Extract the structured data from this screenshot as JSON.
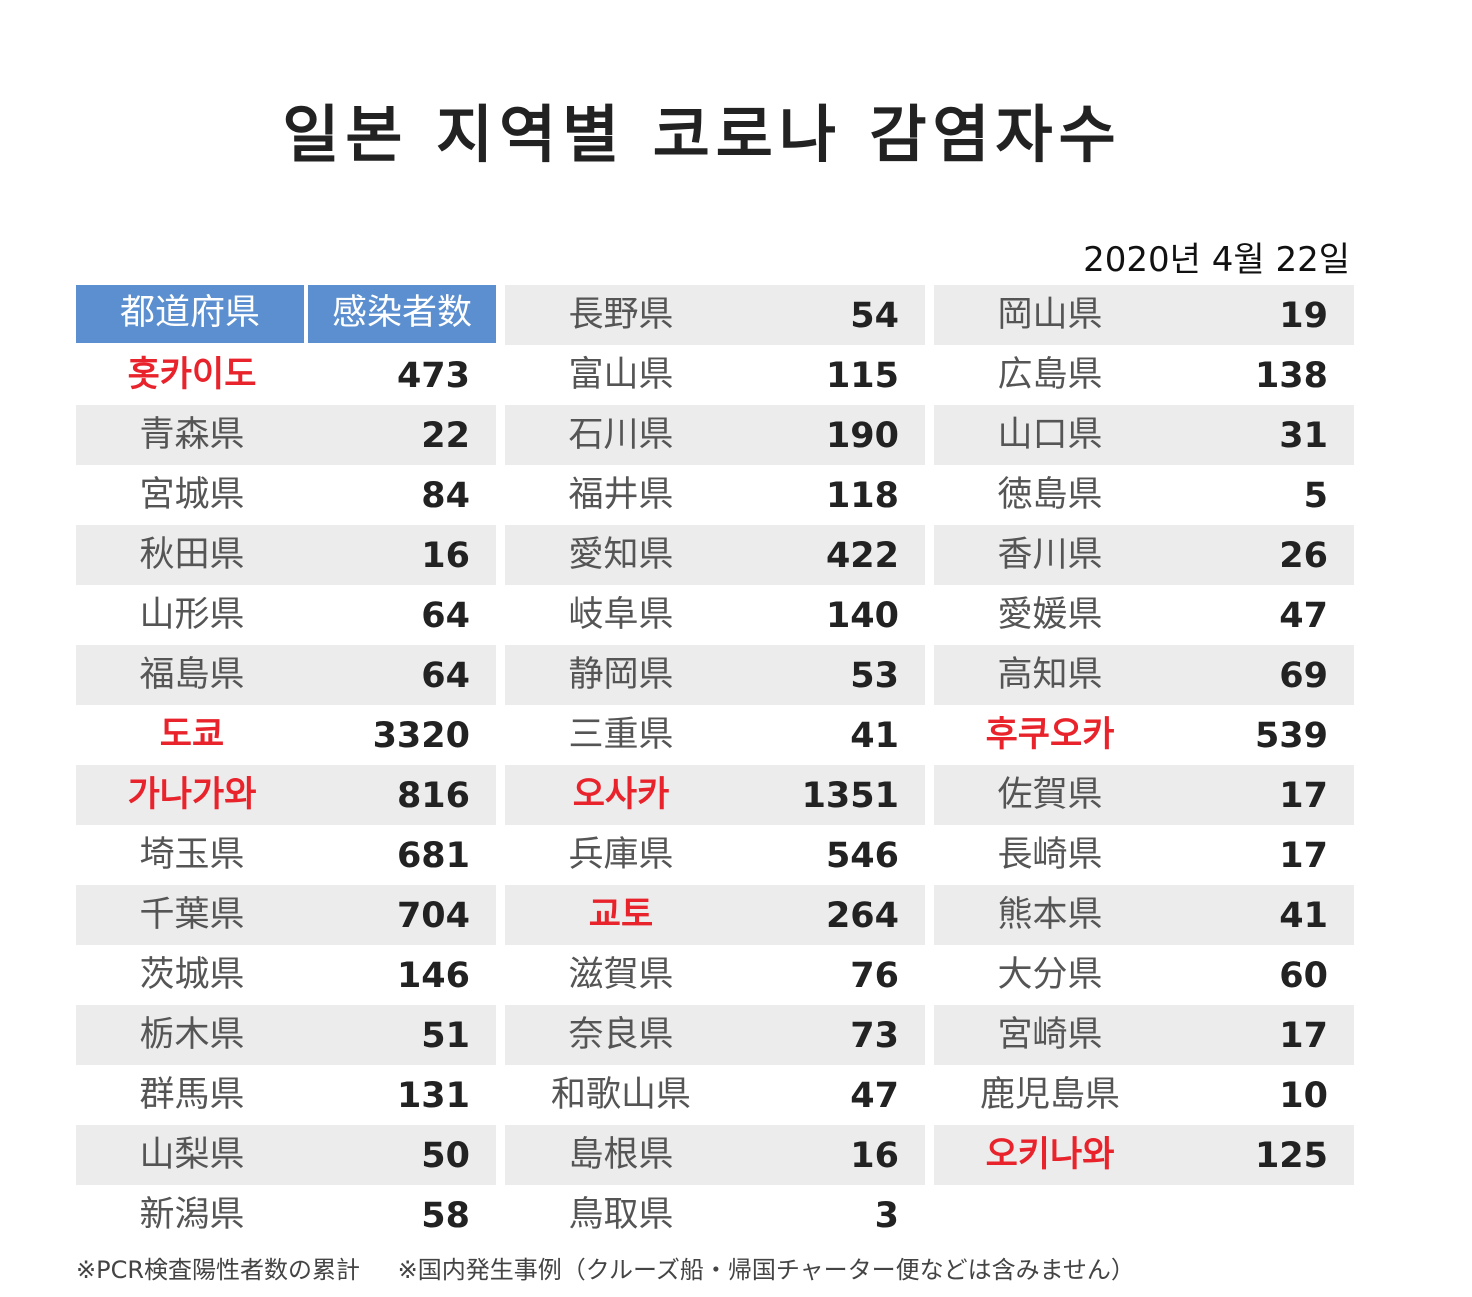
{
  "title": "일본 지역별 코로나 감염자수",
  "date": "2020년 4월 22일",
  "headers": {
    "prefecture": "都道府県",
    "infected": "感染者数"
  },
  "columns": [
    [
      {
        "name": "홋카이도",
        "value": "473",
        "highlight": true
      },
      {
        "name": "青森県",
        "value": "22"
      },
      {
        "name": "宮城県",
        "value": "84"
      },
      {
        "name": "秋田県",
        "value": "16"
      },
      {
        "name": "山形県",
        "value": "64"
      },
      {
        "name": "福島県",
        "value": "64"
      },
      {
        "name": "도쿄",
        "value": "3320",
        "highlight": true
      },
      {
        "name": "가나가와",
        "value": "816",
        "highlight": true
      },
      {
        "name": "埼玉県",
        "value": "681"
      },
      {
        "name": "千葉県",
        "value": "704"
      },
      {
        "name": "茨城県",
        "value": "146"
      },
      {
        "name": "栃木県",
        "value": "51"
      },
      {
        "name": "群馬県",
        "value": "131"
      },
      {
        "name": "山梨県",
        "value": "50"
      },
      {
        "name": "新潟県",
        "value": "58"
      }
    ],
    [
      {
        "name": "長野県",
        "value": "54"
      },
      {
        "name": "富山県",
        "value": "115"
      },
      {
        "name": "石川県",
        "value": "190"
      },
      {
        "name": "福井県",
        "value": "118"
      },
      {
        "name": "愛知県",
        "value": "422"
      },
      {
        "name": "岐阜県",
        "value": "140"
      },
      {
        "name": "静岡県",
        "value": "53"
      },
      {
        "name": "三重県",
        "value": "41"
      },
      {
        "name": "오사카",
        "value": "1351",
        "highlight": true
      },
      {
        "name": "兵庫県",
        "value": "546"
      },
      {
        "name": "교토",
        "value": "264",
        "highlight": true
      },
      {
        "name": "滋賀県",
        "value": "76"
      },
      {
        "name": "奈良県",
        "value": "73"
      },
      {
        "name": "和歌山県",
        "value": "47"
      },
      {
        "name": "島根県",
        "value": "16"
      },
      {
        "name": "鳥取県",
        "value": "3"
      }
    ],
    [
      {
        "name": "岡山県",
        "value": "19"
      },
      {
        "name": "広島県",
        "value": "138"
      },
      {
        "name": "山口県",
        "value": "31"
      },
      {
        "name": "徳島県",
        "value": "5"
      },
      {
        "name": "香川県",
        "value": "26"
      },
      {
        "name": "愛媛県",
        "value": "47"
      },
      {
        "name": "高知県",
        "value": "69"
      },
      {
        "name": "후쿠오카",
        "value": "539",
        "highlight": true
      },
      {
        "name": "佐賀県",
        "value": "17"
      },
      {
        "name": "長崎県",
        "value": "17"
      },
      {
        "name": "熊本県",
        "value": "41"
      },
      {
        "name": "大分県",
        "value": "60"
      },
      {
        "name": "宮崎県",
        "value": "17"
      },
      {
        "name": "鹿児島県",
        "value": "10"
      },
      {
        "name": "오키나와",
        "value": "125",
        "highlight": true
      }
    ]
  ],
  "footnotes": [
    "※PCR検査陽性者数の累計",
    "※国内発生事例（クルーズ船・帰国チャーター便などは含みません）"
  ],
  "colors": {
    "header_bg": "#5b8fd0",
    "highlight_text": "#e8232b",
    "row_shade": "#ececec"
  }
}
